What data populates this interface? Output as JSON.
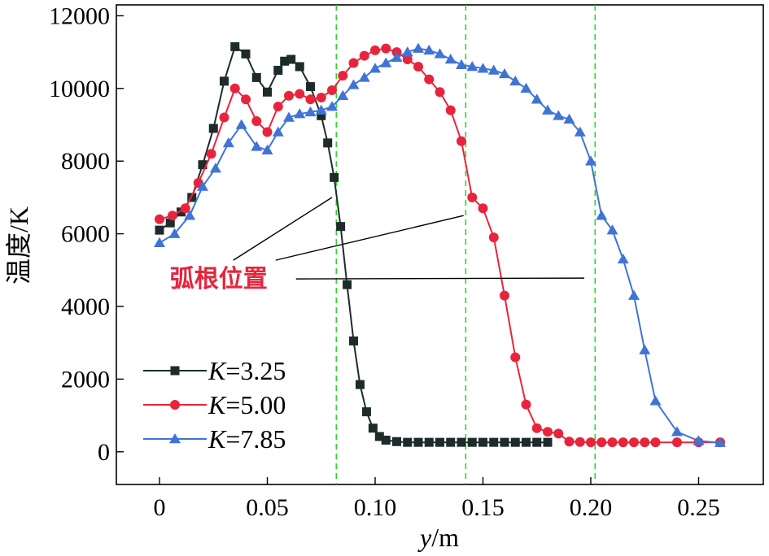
{
  "chart_data": {
    "type": "line",
    "xlabel": {
      "var": "y",
      "unit": "/m"
    },
    "ylabel": "温度/K",
    "xlim": [
      -0.02,
      0.28
    ],
    "ylim": [
      -900,
      12300
    ],
    "x_ticks": [
      0,
      0.05,
      0.1,
      0.15,
      0.2,
      0.25
    ],
    "x_tick_labels": [
      "0",
      "0.05",
      "0.10",
      "0.15",
      "0.20",
      "0.25"
    ],
    "y_ticks": [
      0,
      2000,
      4000,
      6000,
      8000,
      10000,
      12000
    ],
    "y_tick_labels": [
      "0",
      "2000",
      "4000",
      "6000",
      "8000",
      "10000",
      "12000"
    ],
    "legend_placement": "bottom-left",
    "series": [
      {
        "name": "K=3.25",
        "label_var": "K",
        "label_value": "=3.25",
        "color": "#1d2b2b",
        "marker": "square",
        "x": [
          0,
          0.005,
          0.01,
          0.015,
          0.02,
          0.025,
          0.03,
          0.035,
          0.04,
          0.045,
          0.05,
          0.055,
          0.058,
          0.061,
          0.065,
          0.07,
          0.075,
          0.078,
          0.081,
          0.084,
          0.087,
          0.09,
          0.093,
          0.096,
          0.099,
          0.102,
          0.105,
          0.11,
          0.115,
          0.12,
          0.125,
          0.13,
          0.135,
          0.14,
          0.145,
          0.15,
          0.155,
          0.16,
          0.165,
          0.17,
          0.175,
          0.18
        ],
        "y": [
          6100,
          6300,
          6600,
          7000,
          7900,
          8900,
          10200,
          11150,
          10950,
          10300,
          9900,
          10500,
          10750,
          10800,
          10600,
          10050,
          9250,
          8500,
          7550,
          6200,
          4600,
          3050,
          1850,
          1100,
          650,
          420,
          320,
          280,
          260,
          260,
          260,
          260,
          260,
          260,
          260,
          260,
          260,
          260,
          260,
          260,
          260,
          260
        ]
      },
      {
        "name": "K=5.00",
        "label_var": "K",
        "label_value": "=5.00",
        "color": "#e8243c",
        "marker": "circle",
        "x": [
          0,
          0.006,
          0.012,
          0.018,
          0.024,
          0.03,
          0.035,
          0.04,
          0.045,
          0.05,
          0.055,
          0.06,
          0.065,
          0.07,
          0.075,
          0.08,
          0.085,
          0.09,
          0.095,
          0.1,
          0.105,
          0.11,
          0.115,
          0.12,
          0.125,
          0.13,
          0.135,
          0.14,
          0.145,
          0.15,
          0.155,
          0.16,
          0.165,
          0.17,
          0.175,
          0.18,
          0.185,
          0.19,
          0.195,
          0.2,
          0.205,
          0.21,
          0.215,
          0.22,
          0.225,
          0.23,
          0.24,
          0.25,
          0.26
        ],
        "y": [
          6400,
          6500,
          6700,
          7400,
          8200,
          9200,
          10000,
          9700,
          9100,
          8800,
          9500,
          9800,
          9850,
          9700,
          9750,
          9950,
          10350,
          10700,
          10900,
          11050,
          11100,
          11000,
          10800,
          10600,
          10250,
          9900,
          9400,
          8550,
          7000,
          6700,
          5900,
          4300,
          2600,
          1300,
          650,
          550,
          500,
          280,
          270,
          260,
          260,
          260,
          260,
          260,
          260,
          260,
          260,
          260,
          260
        ]
      },
      {
        "name": "K=7.85",
        "label_var": "K",
        "label_value": "=7.85",
        "color": "#3f74d6",
        "marker": "triangle",
        "x": [
          0,
          0.007,
          0.014,
          0.02,
          0.026,
          0.032,
          0.038,
          0.045,
          0.05,
          0.055,
          0.06,
          0.065,
          0.07,
          0.075,
          0.08,
          0.085,
          0.09,
          0.095,
          0.1,
          0.105,
          0.11,
          0.115,
          0.12,
          0.125,
          0.13,
          0.135,
          0.14,
          0.145,
          0.15,
          0.155,
          0.16,
          0.165,
          0.17,
          0.175,
          0.18,
          0.185,
          0.19,
          0.195,
          0.2,
          0.205,
          0.21,
          0.215,
          0.22,
          0.225,
          0.23,
          0.24,
          0.25,
          0.26
        ],
        "y": [
          5750,
          6000,
          6500,
          7300,
          7800,
          8500,
          9000,
          8400,
          8300,
          8800,
          9200,
          9300,
          9350,
          9400,
          9500,
          9800,
          10100,
          10300,
          10550,
          10700,
          10850,
          11000,
          11100,
          11050,
          10950,
          10800,
          10650,
          10600,
          10550,
          10500,
          10400,
          10200,
          10000,
          9700,
          9400,
          9250,
          9150,
          8800,
          8000,
          6500,
          6100,
          5300,
          4300,
          2800,
          1400,
          550,
          300,
          250
        ]
      }
    ],
    "reference_lines": {
      "color": "#22dd22",
      "x": [
        0.082,
        0.142,
        0.202
      ]
    },
    "annotation": {
      "text": "弧根位置",
      "color": "#e8243c",
      "anchor_x": 0.035,
      "anchor_y": 4780,
      "pointers": [
        {
          "x": 0.08,
          "y": 7000
        },
        {
          "x": 0.141,
          "y": 6500
        },
        {
          "x": 0.2,
          "y": 4780
        }
      ]
    }
  }
}
